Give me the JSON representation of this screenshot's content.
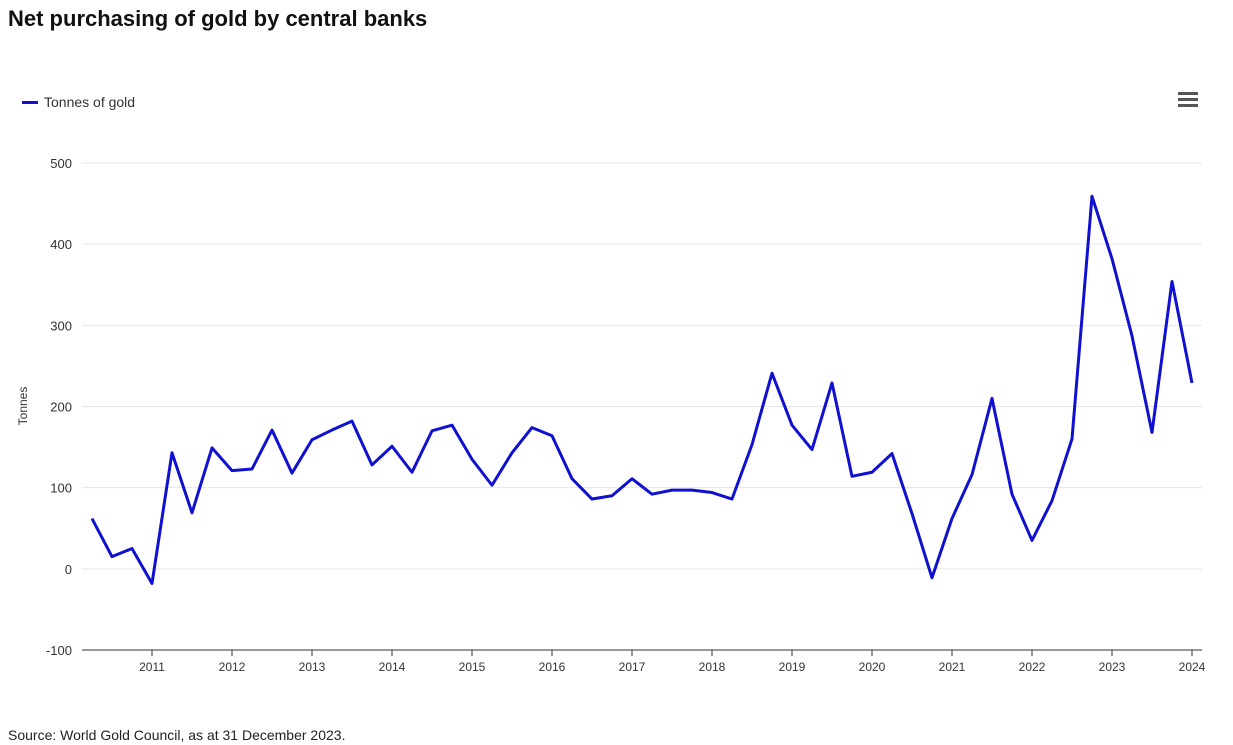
{
  "chart_data": {
    "type": "line",
    "title": "Net purchasing of gold by central banks",
    "ylabel": "Tonnes",
    "xlabel": "",
    "ylim": [
      -100,
      500
    ],
    "xlim": [
      2010.125,
      2024.125
    ],
    "yticks": [
      -100,
      0,
      100,
      200,
      300,
      400,
      500
    ],
    "xticks": [
      2011,
      2012,
      2013,
      2014,
      2015,
      2016,
      2017,
      2018,
      2019,
      2020,
      2021,
      2022,
      2023,
      2024
    ],
    "grid": true,
    "legend": "top-left",
    "series": [
      {
        "name": "Tonnes of gold",
        "color": "#1010d0",
        "x_start": 2010.25,
        "x_step": 0.25,
        "values": [
          62,
          15,
          25,
          -18,
          143,
          69,
          149,
          121,
          123,
          171,
          118,
          159,
          171,
          182,
          128,
          151,
          119,
          170,
          177,
          135,
          103,
          143,
          174,
          164,
          111,
          86,
          90,
          111,
          92,
          97,
          97,
          94,
          86,
          153,
          241,
          177,
          147,
          229,
          114,
          119,
          142,
          68,
          -11,
          62,
          116,
          210,
          92,
          35,
          84,
          160,
          459,
          382,
          287,
          168,
          354,
          229
        ]
      }
    ]
  },
  "legend_label": "Tonnes of gold",
  "menu_icon": "hamburger-menu-icon",
  "source": "Source: World Gold Council, as at 31 December 2023."
}
